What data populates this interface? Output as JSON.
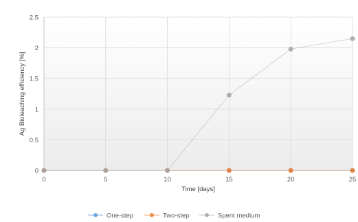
{
  "chart_data": {
    "type": "line",
    "xlabel": "Time [days]",
    "ylabel": "Ag Bioleaching efficiency [%]",
    "x": [
      0,
      5,
      10,
      15,
      20,
      25
    ],
    "xlim": [
      0,
      25
    ],
    "ylim": [
      0,
      2.5
    ],
    "xticks": [
      "0",
      "5",
      "10",
      "15",
      "20",
      "25"
    ],
    "yticks": [
      "0",
      "0.5",
      "1",
      "1.5",
      "2",
      "2.5"
    ],
    "grid": true,
    "legend_position": "bottom",
    "series": [
      {
        "name": "One-step",
        "color": "#5b9bd5",
        "values": [
          0,
          0,
          0,
          0,
          0,
          0
        ]
      },
      {
        "name": "Two-step",
        "color": "#ed7d31",
        "values": [
          0,
          0,
          0,
          0,
          0,
          0
        ]
      },
      {
        "name": "Spent medium",
        "color": "#a5a5a5",
        "values": [
          0,
          0,
          0,
          1.23,
          1.98,
          2.15
        ]
      }
    ]
  }
}
